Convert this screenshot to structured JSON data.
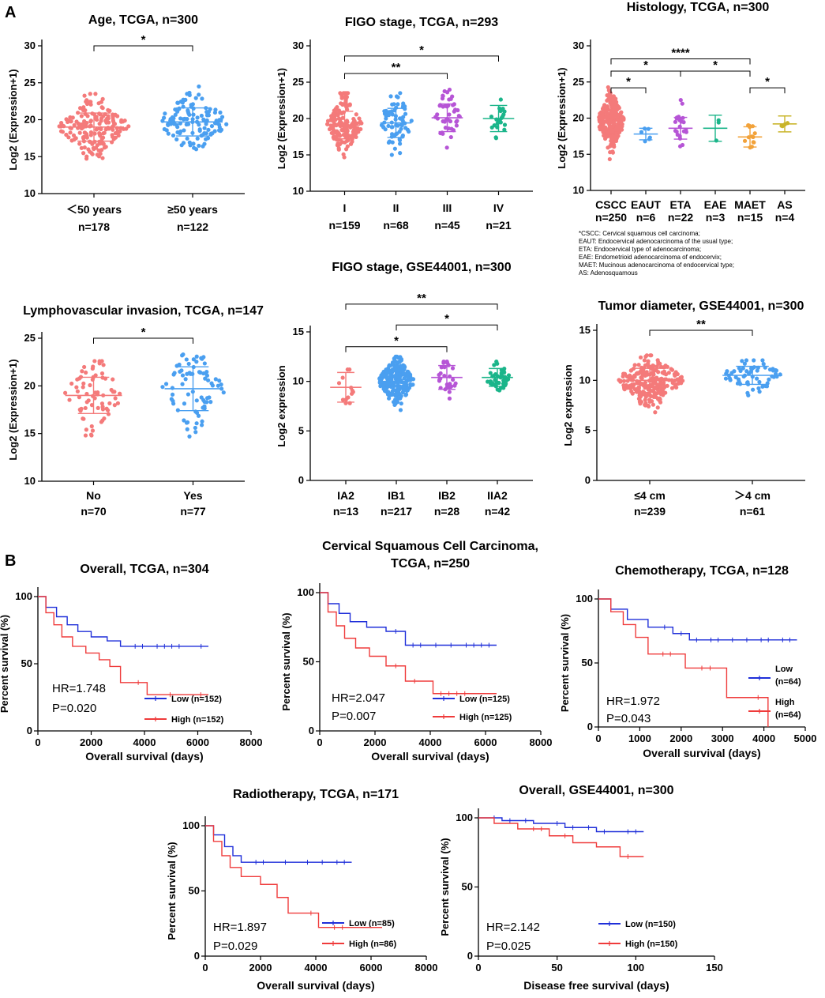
{
  "panel_labels": [
    "A",
    "B"
  ],
  "colors": {
    "pink": "#f47a7a",
    "blue": "#4a9ff0",
    "purple": "#b655d6",
    "green": "#1bb58a",
    "olive": "#c9b52a",
    "orange": "#f2a23a",
    "km_low": "#1f2fd9",
    "km_high": "#ef3b3b"
  },
  "histology_note": [
    "*CSCC: Cervical squamous cell carcinoma;",
    "EAUT: Endocervical adenocarcinoma of the usual type;",
    "ETA: Endocervical type of adenocarcinoma;",
    "EAE: Endometrioid adenocarcinoma of endocervix;",
    "MAET: Mucinous adenocarcinoma of endocervical type;",
    "AS: Adenosquamous"
  ],
  "chart_data": [
    {
      "id": "age",
      "type": "scatter",
      "title": "Age, TCGA, n=300",
      "ylabel": "Log2 (Expression+1)",
      "ylim": [
        10,
        30
      ],
      "yticks": [
        10,
        15,
        20,
        25,
        30
      ],
      "groups": [
        {
          "label": "＜50 years",
          "n": "n=178",
          "color": "pink",
          "mean": 19.0,
          "sd": 1.9,
          "min": 14.2,
          "max": 23.5,
          "count": 178
        },
        {
          "label": "≥50 years",
          "n": "n=122",
          "color": "blue",
          "mean": 19.7,
          "sd": 1.9,
          "min": 14.8,
          "max": 24.5,
          "count": 122
        }
      ],
      "sig": [
        {
          "from": 0,
          "to": 1,
          "label": "*"
        }
      ]
    },
    {
      "id": "figo_tcga",
      "type": "scatter",
      "title": "FIGO stage, TCGA, n=293",
      "ylabel": "Log2 (Expression+1)",
      "ylim": [
        10,
        30
      ],
      "yticks": [
        10,
        15,
        20,
        25,
        30
      ],
      "groups": [
        {
          "label": "I",
          "n": "n=159",
          "color": "pink",
          "mean": 19.1,
          "sd": 1.9,
          "min": 14.2,
          "max": 23.5,
          "count": 159
        },
        {
          "label": "II",
          "n": "n=68",
          "color": "blue",
          "mean": 19.4,
          "sd": 2.0,
          "min": 14.5,
          "max": 23.5,
          "count": 68
        },
        {
          "label": "III",
          "n": "n=45",
          "color": "purple",
          "mean": 20.1,
          "sd": 1.9,
          "min": 16.0,
          "max": 24.5,
          "count": 45
        },
        {
          "label": "IV",
          "n": "n=21",
          "color": "green",
          "mean": 20.0,
          "sd": 1.8,
          "min": 16.2,
          "max": 23.5,
          "count": 21
        }
      ],
      "sig": [
        {
          "from": 0,
          "to": 3,
          "label": "*"
        },
        {
          "from": 0,
          "to": 2,
          "label": "**"
        }
      ]
    },
    {
      "id": "histology",
      "type": "scatter",
      "title": "Histology, TCGA, n=300",
      "ylabel": "Log2 (Expression+1)",
      "ylim": [
        10,
        30
      ],
      "yticks": [
        10,
        15,
        20,
        25,
        30
      ],
      "groups": [
        {
          "label": "CSCC",
          "n": "n=250",
          "color": "pink",
          "mean": 19.6,
          "sd": 1.8,
          "min": 14.3,
          "max": 24.5,
          "count": 250
        },
        {
          "label": "EAUT",
          "n": "n=6",
          "color": "blue",
          "mean": 17.8,
          "sd": 0.8,
          "min": 16.8,
          "max": 18.8,
          "count": 6
        },
        {
          "label": "ETA",
          "n": "n=22",
          "color": "purple",
          "mean": 18.6,
          "sd": 1.5,
          "min": 15.8,
          "max": 23.3,
          "count": 22
        },
        {
          "label": "EAE",
          "n": "n=3",
          "color": "green",
          "mean": 18.6,
          "sd": 1.8,
          "min": 16.9,
          "max": 20.5,
          "count": 3
        },
        {
          "label": "MAET",
          "n": "n=15",
          "color": "orange",
          "mean": 17.4,
          "sd": 1.4,
          "min": 15.2,
          "max": 19.0,
          "count": 15
        },
        {
          "label": "AS",
          "n": "n=4",
          "color": "olive",
          "mean": 19.2,
          "sd": 1.1,
          "min": 18.0,
          "max": 20.5,
          "count": 4
        }
      ],
      "sig": [
        {
          "from": 0,
          "to": 4,
          "label": "****"
        },
        {
          "from": 0,
          "to": 2,
          "label": "*"
        },
        {
          "from": 2,
          "to": 4,
          "label": "*"
        },
        {
          "from": 0,
          "to": 1,
          "label": "*"
        },
        {
          "from": 4,
          "to": 5,
          "label": "*"
        }
      ]
    },
    {
      "id": "lvi",
      "type": "scatter",
      "title": "Lymphovascular invasion, TCGA, n=147",
      "ylabel": "Log2 (Expression+1)",
      "ylim": [
        10,
        25
      ],
      "yticks": [
        10,
        15,
        20,
        25
      ],
      "groups": [
        {
          "label": "No",
          "n": "n=70",
          "color": "pink",
          "mean": 19.0,
          "sd": 1.9,
          "min": 14.8,
          "max": 22.6,
          "count": 70
        },
        {
          "label": "Yes",
          "n": "n=77",
          "color": "blue",
          "mean": 19.7,
          "sd": 2.3,
          "min": 14.2,
          "max": 23.5,
          "count": 77
        }
      ],
      "sig": [
        {
          "from": 0,
          "to": 1,
          "label": "*"
        }
      ]
    },
    {
      "id": "figo_gse",
      "type": "scatter",
      "title": "FIGO stage, GSE44001, n=300",
      "ylabel": "Log2 expression",
      "ylim": [
        0,
        15
      ],
      "yticks": [
        0,
        5,
        10,
        15
      ],
      "groups": [
        {
          "label": "IA2",
          "n": "n=13",
          "color": "pink",
          "mean": 9.4,
          "sd": 1.5,
          "min": 7.8,
          "max": 11.2,
          "count": 13
        },
        {
          "label": "IB1",
          "n": "n=217",
          "color": "blue",
          "mean": 10.0,
          "sd": 1.2,
          "min": 6.6,
          "max": 12.5,
          "count": 217
        },
        {
          "label": "IB2",
          "n": "n=28",
          "color": "purple",
          "mean": 10.4,
          "sd": 1.2,
          "min": 7.9,
          "max": 12.0,
          "count": 28
        },
        {
          "label": "IIA2",
          "n": "n=42",
          "color": "green",
          "mean": 10.4,
          "sd": 0.9,
          "min": 8.0,
          "max": 12.0,
          "count": 42
        }
      ],
      "sig": [
        {
          "from": 0,
          "to": 2,
          "label": "*"
        },
        {
          "from": 1,
          "to": 3,
          "label": "*"
        },
        {
          "from": 0,
          "to": 3,
          "label": "**"
        }
      ]
    },
    {
      "id": "diameter",
      "type": "scatter",
      "title": "Tumor diameter, GSE44001, n=300",
      "ylabel": "Log2 expression",
      "ylim": [
        0,
        15
      ],
      "yticks": [
        0,
        5,
        10,
        15
      ],
      "groups": [
        {
          "label": "≤4 cm",
          "n": "n=239",
          "color": "pink",
          "mean": 10.0,
          "sd": 1.2,
          "min": 6.6,
          "max": 12.5,
          "count": 239
        },
        {
          "label": "＞4 cm",
          "n": "n=61",
          "color": "blue",
          "mean": 10.5,
          "sd": 0.9,
          "min": 8.5,
          "max": 12.0,
          "count": 61
        }
      ],
      "sig": [
        {
          "from": 0,
          "to": 1,
          "label": "**"
        }
      ]
    },
    {
      "id": "km_overall",
      "type": "line",
      "title": "Overall, TCGA, n=304",
      "xlabel": "Overall survival (days)",
      "ylabel": "Percent survival (%)",
      "xlim": [
        0,
        8000
      ],
      "xticks": [
        0,
        2000,
        4000,
        6000,
        8000
      ],
      "ylim": [
        0,
        100
      ],
      "yticks": [
        0,
        50,
        100
      ],
      "hr": "HR=1.748",
      "p": "P=0.020",
      "series": [
        {
          "name": "Low (n=152)",
          "color": "km_low",
          "x": [
            0,
            300,
            700,
            1100,
            1500,
            2000,
            2600,
            3100,
            6400
          ],
          "y": [
            100,
            92,
            85,
            79,
            74,
            70,
            67,
            63,
            63
          ]
        },
        {
          "name": "High (n=152)",
          "color": "km_high",
          "x": [
            0,
            300,
            600,
            900,
            1300,
            1800,
            2300,
            2700,
            3100,
            4100,
            6400
          ],
          "y": [
            100,
            88,
            79,
            70,
            63,
            58,
            53,
            48,
            36,
            27,
            27
          ]
        }
      ]
    },
    {
      "id": "km_cscc",
      "type": "line",
      "title": "Cervical Squamous Cell Carcinoma, TCGA, n=250",
      "xlabel": "Overall survival (days)",
      "ylabel": "Percent survival (%)",
      "xlim": [
        0,
        8000
      ],
      "xticks": [
        0,
        2000,
        4000,
        6000,
        8000
      ],
      "ylim": [
        0,
        100
      ],
      "yticks": [
        0,
        50,
        100
      ],
      "hr": "HR=2.047",
      "p": "P=0.007",
      "series": [
        {
          "name": "Low (n=125)",
          "color": "km_low",
          "x": [
            0,
            300,
            700,
            1100,
            1700,
            2400,
            3100,
            6400
          ],
          "y": [
            100,
            92,
            85,
            79,
            75,
            72,
            62,
            62
          ]
        },
        {
          "name": "High (n=125)",
          "color": "km_high",
          "x": [
            0,
            300,
            600,
            900,
            1300,
            1800,
            2400,
            3100,
            4100,
            6400
          ],
          "y": [
            100,
            86,
            76,
            67,
            60,
            54,
            47,
            36,
            27,
            27
          ]
        }
      ]
    },
    {
      "id": "km_chemo",
      "type": "line",
      "title": "Chemotherapy, TCGA, n=128",
      "xlabel": "Overall survival (days)",
      "ylabel": "Percent survival (%)",
      "xlim": [
        0,
        5000
      ],
      "xticks": [
        0,
        1000,
        2000,
        3000,
        4000,
        5000
      ],
      "ylim": [
        0,
        100
      ],
      "yticks": [
        0,
        50,
        100
      ],
      "hr": "HR=1.972",
      "p": "P=0.043",
      "series": [
        {
          "name": "Low (n=64)",
          "color": "km_low",
          "x": [
            0,
            300,
            700,
            1200,
            1800,
            2200,
            4800
          ],
          "y": [
            100,
            92,
            84,
            78,
            73,
            68,
            68
          ]
        },
        {
          "name": "High (n=64)",
          "color": "km_high",
          "x": [
            0,
            300,
            600,
            900,
            1200,
            2100,
            3100,
            4050,
            4100
          ],
          "y": [
            100,
            90,
            80,
            70,
            57,
            46,
            23,
            23,
            0
          ]
        }
      ]
    },
    {
      "id": "km_radio",
      "type": "line",
      "title": "Radiotherapy, TCGA, n=171",
      "xlabel": "Overall survival (days)",
      "ylabel": "Percent survival (%)",
      "xlim": [
        0,
        8000
      ],
      "xticks": [
        0,
        2000,
        4000,
        6000,
        8000
      ],
      "ylim": [
        0,
        100
      ],
      "yticks": [
        0,
        50,
        100
      ],
      "hr": "HR=1.897",
      "p": "P=0.029",
      "series": [
        {
          "name": "Low (n=85)",
          "color": "km_low",
          "x": [
            0,
            300,
            700,
            1000,
            1300,
            5300
          ],
          "y": [
            100,
            93,
            84,
            77,
            72,
            72
          ]
        },
        {
          "name": "High (n=86)",
          "color": "km_high",
          "x": [
            0,
            300,
            600,
            900,
            1300,
            2000,
            2600,
            3000,
            4100,
            6400
          ],
          "y": [
            100,
            88,
            77,
            68,
            61,
            55,
            45,
            33,
            22,
            22
          ]
        }
      ]
    },
    {
      "id": "km_dfs",
      "type": "line",
      "title": "Overall, GSE44001, n=300",
      "xlabel": "Disease free survival (days)",
      "ylabel": "Percent survival (%)",
      "xlim": [
        0,
        150
      ],
      "xticks": [
        0,
        50,
        100,
        150
      ],
      "ylim": [
        0,
        100
      ],
      "yticks": [
        0,
        50,
        100
      ],
      "hr": "HR=2.142",
      "p": "P=0.025",
      "series": [
        {
          "name": "Low (n=150)",
          "color": "km_low",
          "x": [
            0,
            15,
            35,
            55,
            75,
            105
          ],
          "y": [
            100,
            98,
            96,
            93,
            90,
            90
          ]
        },
        {
          "name": "High (n=150)",
          "color": "km_high",
          "x": [
            0,
            10,
            25,
            45,
            60,
            75,
            90,
            105
          ],
          "y": [
            100,
            96,
            92,
            87,
            82,
            79,
            72,
            72
          ]
        }
      ]
    }
  ]
}
